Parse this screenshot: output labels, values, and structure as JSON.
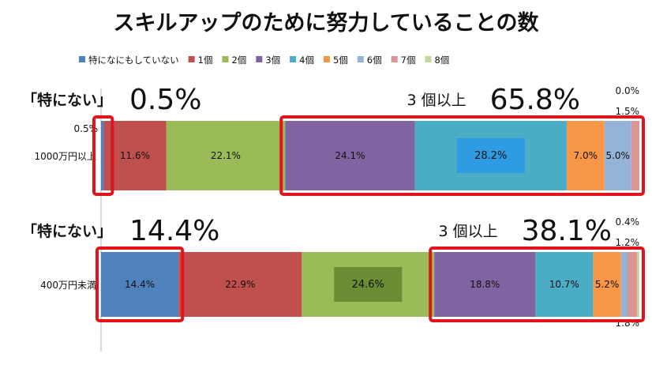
{
  "chart_data": {
    "type": "bar",
    "orientation": "horizontal",
    "stacked": true,
    "normalized": true,
    "title": "スキルアップのために努力していることの数",
    "categories": [
      "1000万円以上",
      "400万円未満"
    ],
    "series": [
      {
        "name": "特になにもしていない",
        "color": "#4F81BD",
        "values": [
          0.5,
          14.4
        ]
      },
      {
        "name": "1個",
        "color": "#C0504D",
        "values": [
          11.6,
          22.9
        ]
      },
      {
        "name": "2個",
        "color": "#9BBB59",
        "values": [
          22.1,
          24.6
        ]
      },
      {
        "name": "3個",
        "color": "#8064A2",
        "values": [
          24.1,
          18.8
        ]
      },
      {
        "name": "4個",
        "color": "#4BACC6",
        "values": [
          28.2,
          10.7
        ]
      },
      {
        "name": "5個",
        "color": "#F79646",
        "values": [
          7.0,
          5.2
        ]
      },
      {
        "name": "6個",
        "color": "#95B3D7",
        "values": [
          5.0,
          1.2
        ]
      },
      {
        "name": "7個",
        "color": "#D99694",
        "values": [
          1.5,
          1.8
        ]
      },
      {
        "name": "8個",
        "color": "#C3D69B",
        "values": [
          0.0,
          0.4
        ]
      }
    ],
    "bar_labels": [
      [
        "",
        "11.6%",
        "22.1%",
        "24.1%",
        "28.2%",
        "7.0%",
        "5.0%",
        "",
        ""
      ],
      [
        "14.4%",
        "22.9%",
        "24.6%",
        "18.8%",
        "10.7%",
        "5.2%",
        "",
        "",
        ""
      ]
    ],
    "outside_labels": [
      {
        "row": 0,
        "text": "0.5%",
        "series": 0,
        "position": "left"
      },
      {
        "row": 0,
        "text": "0.0%",
        "series": 8,
        "position": "above"
      },
      {
        "row": 0,
        "text": "1.5%",
        "series": 7,
        "position": "above"
      },
      {
        "row": 1,
        "text": "0.4%",
        "series": 8,
        "position": "above"
      },
      {
        "row": 1,
        "text": "1.2%",
        "series": 6,
        "position": "above"
      },
      {
        "row": 1,
        "text": "1.8%",
        "series": 7,
        "position": "below"
      }
    ],
    "highlight_series": [
      {
        "row": 0,
        "series": 4,
        "color": "#2E9BE3"
      },
      {
        "row": 1,
        "series": 2,
        "color": "#6A8C33"
      }
    ],
    "annotations": [
      {
        "row": 0,
        "label": "「特にない」",
        "value": "0.5%",
        "box_series": [
          0
        ]
      },
      {
        "row": 0,
        "label": "3 個以上",
        "value": "65.8%",
        "box_series": [
          3,
          4,
          5,
          6,
          7,
          8
        ]
      },
      {
        "row": 1,
        "label": "「特にない」",
        "value": "14.4%",
        "box_series": [
          0
        ]
      },
      {
        "row": 1,
        "label": "3 個以上",
        "value": "38.1%",
        "box_series": [
          3,
          4,
          5,
          6,
          7,
          8
        ]
      }
    ],
    "legend_position": "top",
    "xlim": [
      0,
      100
    ],
    "grid": false
  }
}
